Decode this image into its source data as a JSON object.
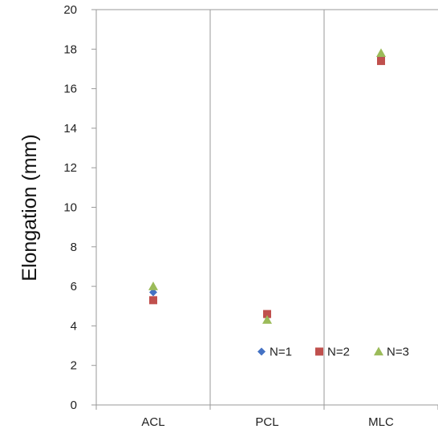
{
  "chart_data": {
    "type": "scatter",
    "title": "",
    "xlabel": "",
    "ylabel": "Elongation (mm)",
    "categories": [
      "ACL",
      "PCL",
      "MLC"
    ],
    "ylim": [
      0,
      20
    ],
    "yticks": [
      0,
      2,
      4,
      6,
      8,
      10,
      12,
      14,
      16,
      18,
      20
    ],
    "grid": false,
    "legend_position": "bottom-right",
    "series": [
      {
        "name": "N=1",
        "marker": "diamond",
        "color": "#4472C4",
        "values": [
          5.7,
          4.5,
          17.6
        ]
      },
      {
        "name": "N=2",
        "marker": "square",
        "color": "#C0504D",
        "values": [
          5.3,
          4.6,
          17.4
        ]
      },
      {
        "name": "N=3",
        "marker": "triangle",
        "color": "#9BBB59",
        "values": [
          6.0,
          4.3,
          17.8
        ]
      }
    ]
  }
}
